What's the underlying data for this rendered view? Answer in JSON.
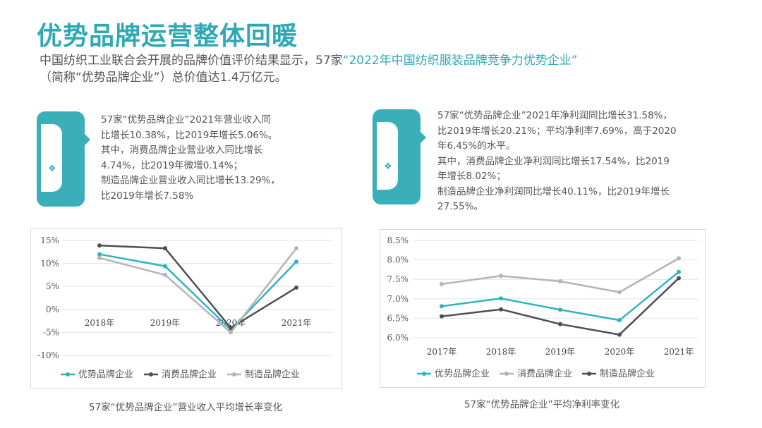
{
  "title": "优势品牌运营整体回暖",
  "intro": {
    "line1_prefix": "中国纺织工业联合会开展的品牌价值评价结果显示，57家",
    "line1_highlight": "“2022年中国纺织服装品牌竞争力优势企业”",
    "line2": "（简称“优势品牌企业”）总价值达1.4万亿元。"
  },
  "cards": [
    {
      "lines": [
        "57家“优势品牌企业”2021年营业收入同",
        "比增长10.38%，比2019年增长5.06%。",
        "其中，消费品牌企业营业收入同比增长",
        "4.74%，比2019年微增0.14%；",
        "制造品牌企业营业收入同比增长13.29%，",
        "比2019年增长7.58%"
      ]
    },
    {
      "lines": [
        "57家“优势品牌企业”2021年净利润同比增长31.58%，",
        "比2019年增长20.21%；平均净利率7.69%，高于2020",
        "年6.45%的水平。",
        "其中，消费品牌企业净利润同比增长17.54%，比2019",
        "年增长8.02%；",
        "制造品牌企业净利润同比增长40.11%，比2019年增长",
        "27.55%。"
      ]
    }
  ],
  "colors": {
    "accent": "#2fa8b5",
    "series_teal": "#2fb3bf",
    "series_dark": "#4d4f53",
    "series_gray": "#b4b4b4"
  },
  "chart_data": [
    {
      "type": "line",
      "title": "57家“优势品牌企业”营业收入平均增长率变化",
      "categories": [
        "2018年",
        "2019年",
        "2020年",
        "2021年"
      ],
      "y_ticks": [
        "15%",
        "10%",
        "5%",
        "0%",
        "-5%",
        "-10%"
      ],
      "ylim": [
        -10,
        15
      ],
      "series": [
        {
          "name": "优势品牌企业",
          "color": "#2fb3bf",
          "values": [
            12.0,
            9.4,
            -4.4,
            10.38
          ]
        },
        {
          "name": "消费品牌企业",
          "color": "#4d4f53",
          "values": [
            13.9,
            13.3,
            -4.0,
            4.74
          ]
        },
        {
          "name": "制造品牌企业",
          "color": "#b4b4b4",
          "values": [
            11.2,
            7.5,
            -5.0,
            13.29
          ]
        }
      ]
    },
    {
      "type": "line",
      "title": "57家“优势品牌企业”平均净利率变化",
      "categories": [
        "2017年",
        "2018年",
        "2019年",
        "2020年",
        "2021年"
      ],
      "y_ticks": [
        "8.5%",
        "8.0%",
        "7.5%",
        "7.0%",
        "6.5%",
        "6.0%"
      ],
      "ylim": [
        6.0,
        8.5
      ],
      "series": [
        {
          "name": "优势品牌企业",
          "color": "#2fb3bf",
          "values": [
            6.81,
            7.01,
            6.72,
            6.45,
            7.69
          ]
        },
        {
          "name": "消费品牌企业",
          "color": "#b4b4b4",
          "values": [
            7.38,
            7.59,
            7.45,
            7.17,
            8.04
          ]
        },
        {
          "name": "制造品牌企业",
          "color": "#4d4f53",
          "values": [
            6.55,
            6.73,
            6.35,
            6.08,
            7.53
          ]
        }
      ]
    }
  ]
}
